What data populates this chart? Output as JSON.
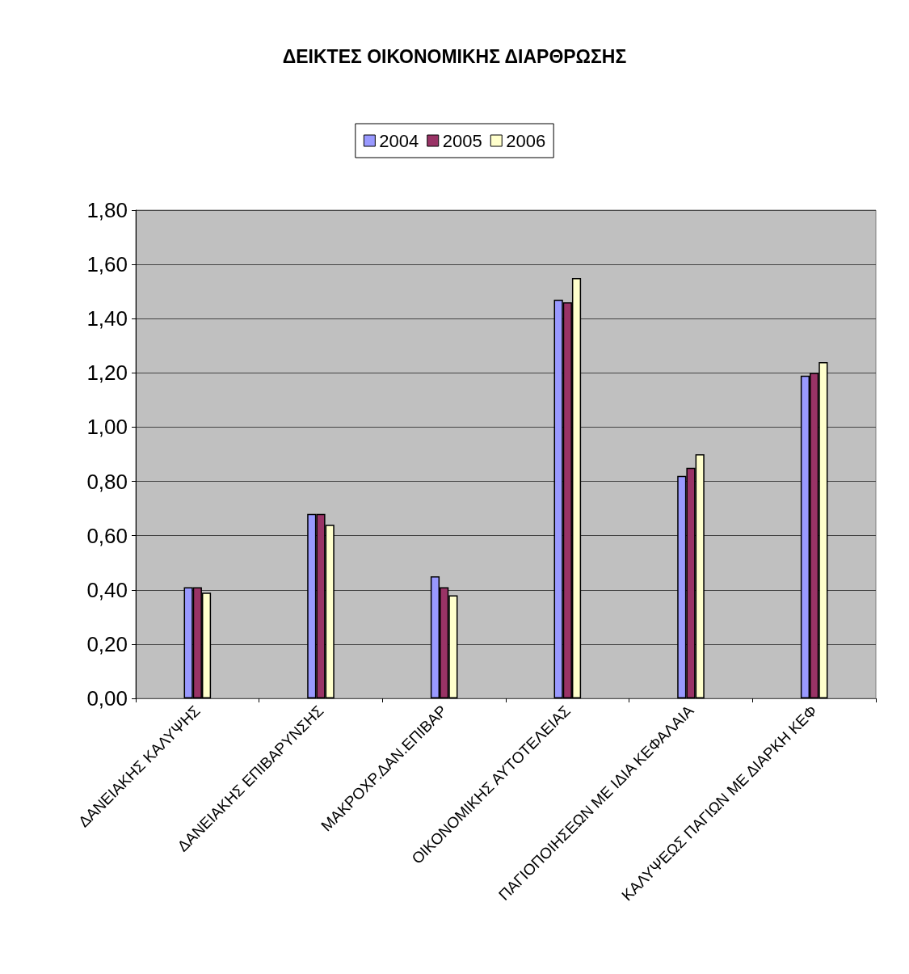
{
  "chart_data": {
    "type": "bar",
    "title": "ΔΕΙΚΤΕΣ ΟΙΚΟΝΟΜΙΚΗΣ ΔΙΑΡΘΡΩΣΗΣ",
    "categories": [
      "ΔΑΝΕΙΑΚΗΣ ΚΑΛΥΨΗΣ",
      "ΔΑΝΕΙΑΚΗΣ ΕΠΙΒΑΡΥΝΣΗΣ",
      "ΜΑΚΡΟΧΡ.ΔΑΝ.ΕΠΙΒΑΡ",
      "ΟΙΚΟΝΟΜΙΚΗΣ ΑΥΤΟΤΕΛΕΙΑΣ",
      "ΠΑΓΙΟΠΟΙΗΣΕΩΝ ΜΕ ΙΔΙΑ ΚΕΦΑΛΑΙΑ",
      "ΚΑΛΥΨΕΩΣ ΠΑΓΙΩΝ ΜΕ ΔΙΑΡΚΗ ΚΕΦ"
    ],
    "series": [
      {
        "name": "2004",
        "color": "#9999ff",
        "values": [
          0.41,
          0.68,
          0.45,
          1.47,
          0.82,
          1.19
        ]
      },
      {
        "name": "2005",
        "color": "#993366",
        "values": [
          0.41,
          0.68,
          0.41,
          1.46,
          0.85,
          1.2
        ]
      },
      {
        "name": "2006",
        "color": "#ffffcc",
        "values": [
          0.39,
          0.64,
          0.38,
          1.55,
          0.9,
          1.24
        ]
      }
    ],
    "ylim": [
      0,
      1.8
    ],
    "yticks": [
      {
        "value": 0,
        "label": "0,00"
      },
      {
        "value": 0.2,
        "label": "0,20"
      },
      {
        "value": 0.4,
        "label": "0,40"
      },
      {
        "value": 0.6,
        "label": "0,60"
      },
      {
        "value": 0.8,
        "label": "0,80"
      },
      {
        "value": 1,
        "label": "1,00"
      },
      {
        "value": 1.2,
        "label": "1,20"
      },
      {
        "value": 1.4,
        "label": "1,40"
      },
      {
        "value": 1.6,
        "label": "1,60"
      },
      {
        "value": 1.8,
        "label": "1,80"
      }
    ],
    "grid": "y",
    "legend": "top"
  }
}
